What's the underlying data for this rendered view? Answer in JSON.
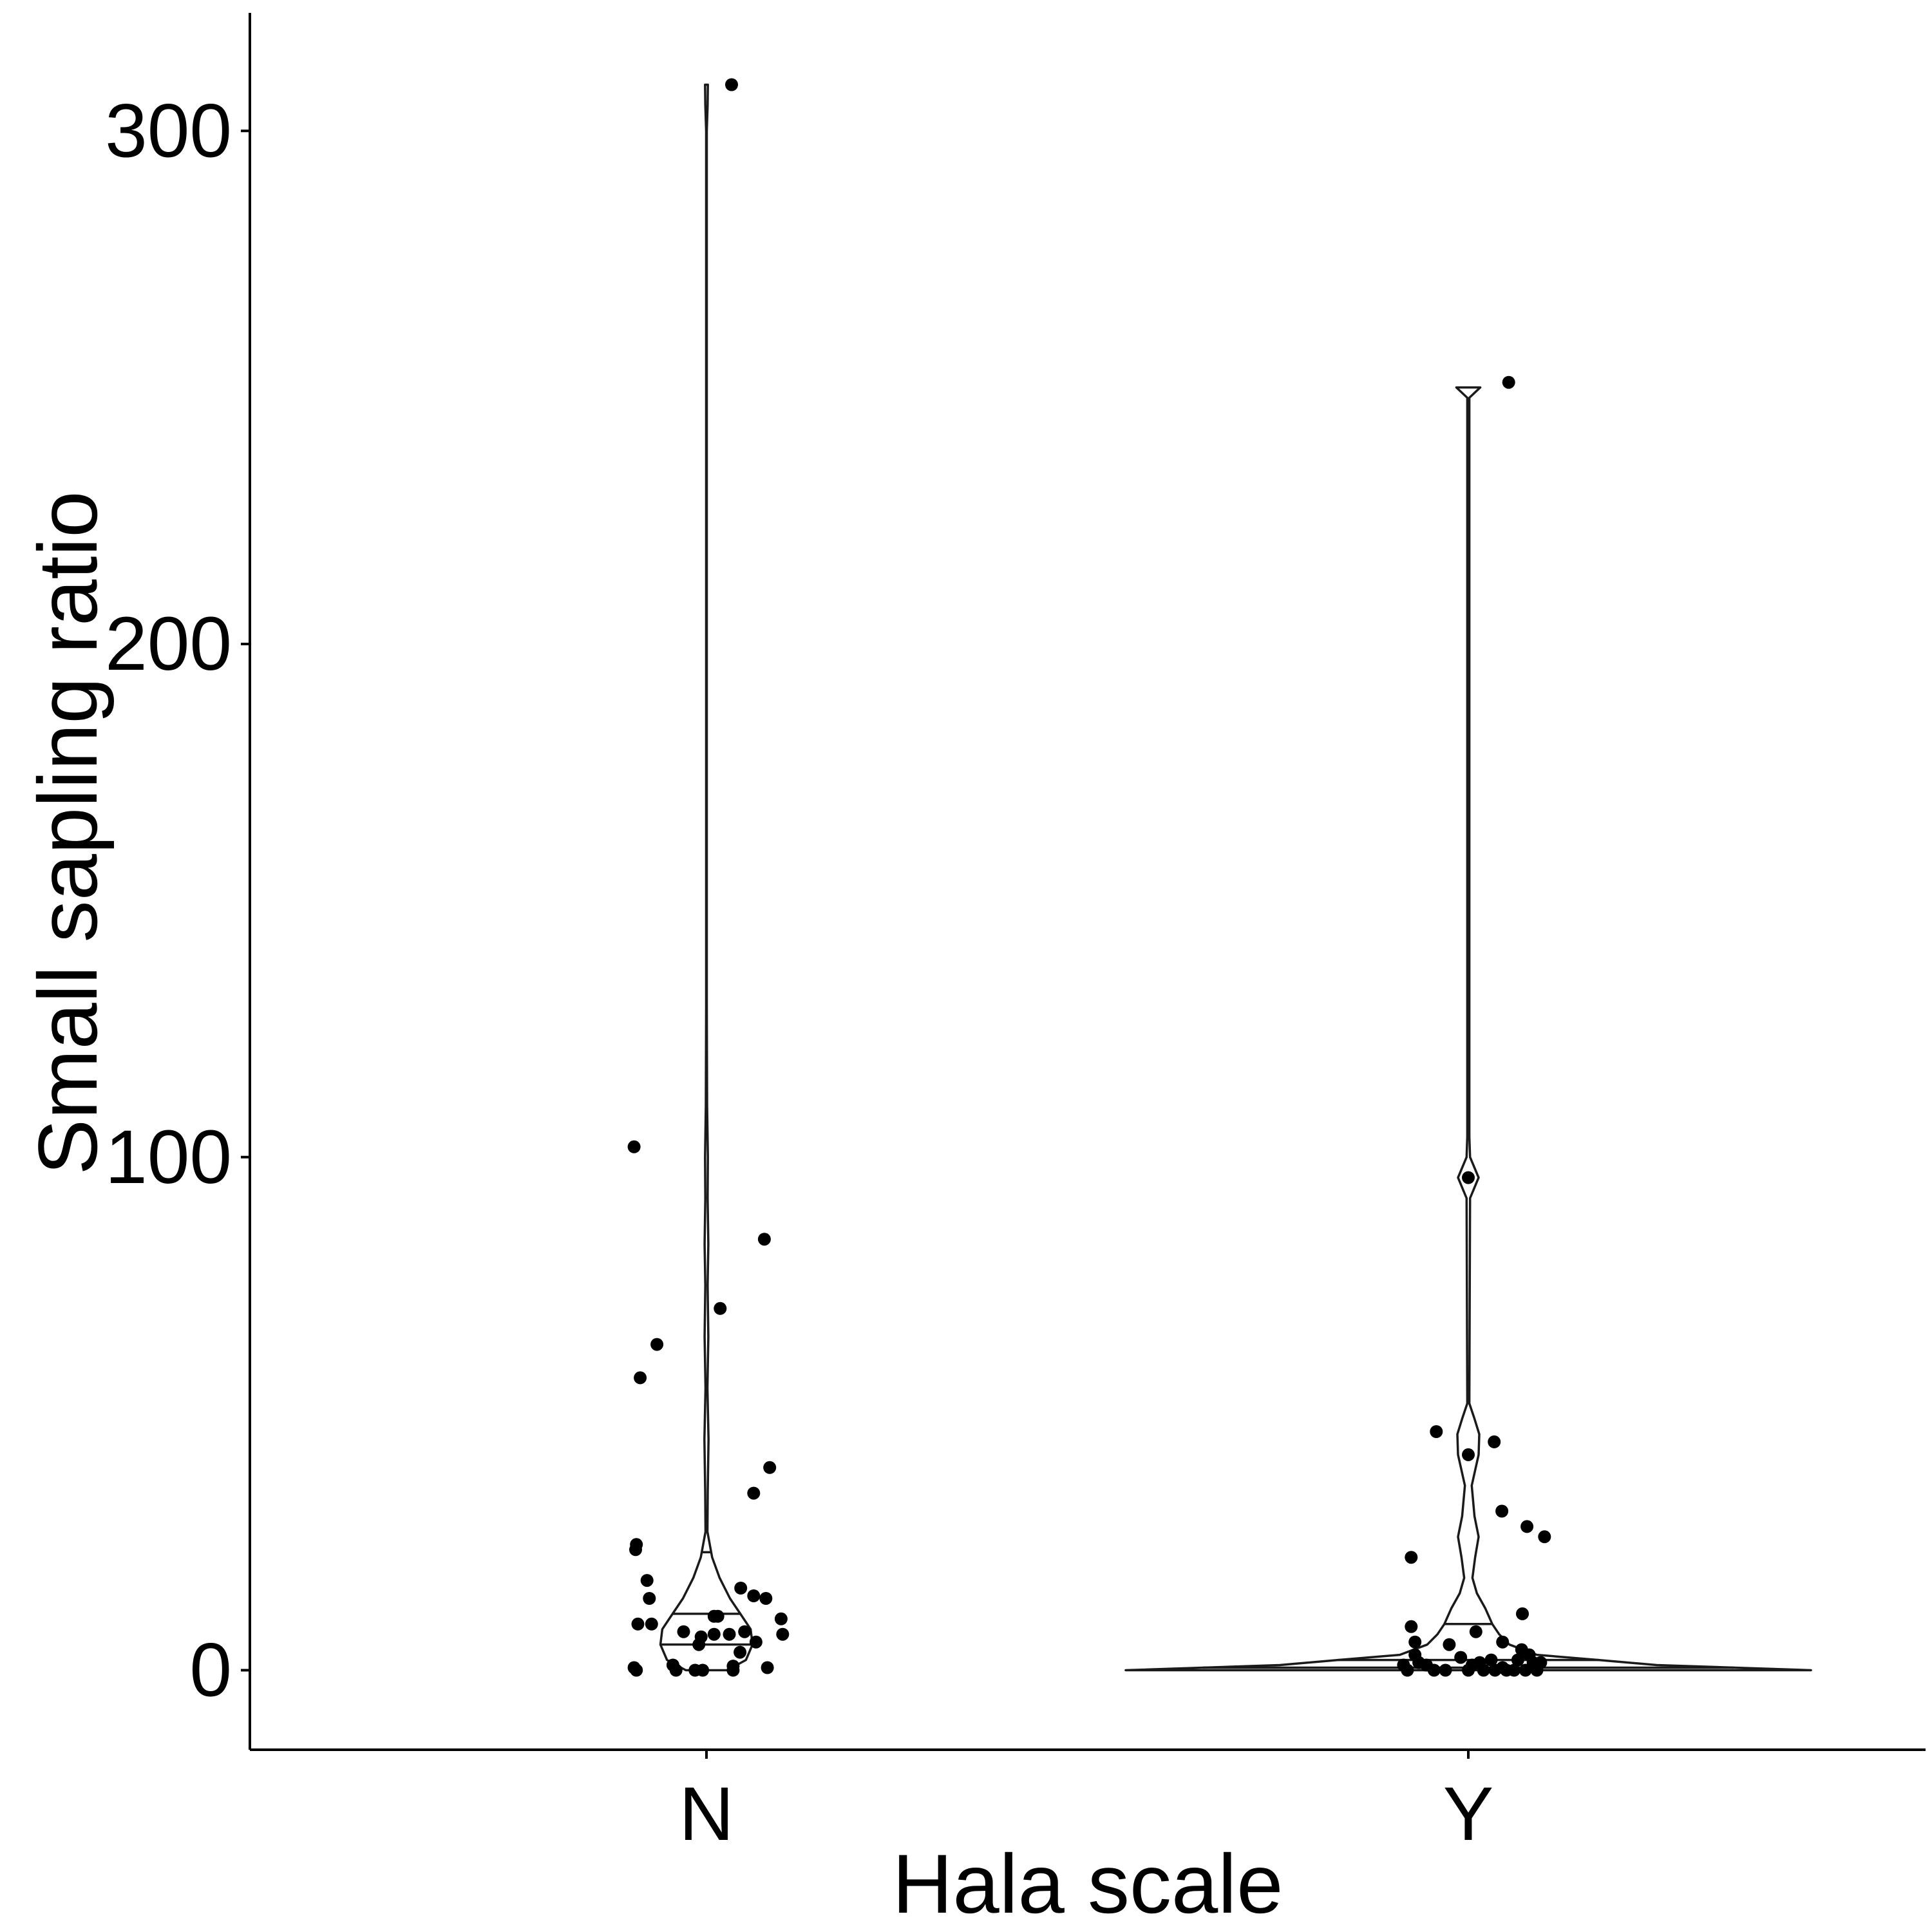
{
  "chart_data": {
    "type": "violin",
    "title": "",
    "xlabel": "Hala scale",
    "ylabel": "Small sapling ratio",
    "categories": [
      "N",
      "Y"
    ],
    "ylim": [
      -15.5,
      323
    ],
    "yticks": [
      0,
      100,
      200,
      300
    ],
    "ytick_labels": [
      "0",
      "100",
      "200",
      "300"
    ],
    "grid": false,
    "legend": "none",
    "colors": {
      "violin_stroke": "#1a1a1a",
      "point": "#000000",
      "axis": "#000000"
    },
    "violins": [
      {
        "category": "N",
        "max": 309,
        "quantiles": [
          5,
          11,
          23
        ],
        "profile": [
          [
            0,
            0.22
          ],
          [
            2,
            0.42
          ],
          [
            5,
            0.49
          ],
          [
            8,
            0.47
          ],
          [
            11,
            0.36
          ],
          [
            14,
            0.25
          ],
          [
            18,
            0.14
          ],
          [
            22,
            0.06
          ],
          [
            27,
            0.01
          ],
          [
            35,
            0.014
          ],
          [
            45,
            0.022
          ],
          [
            55,
            0.01
          ],
          [
            65,
            0.02
          ],
          [
            75,
            0.012
          ],
          [
            83,
            0.02
          ],
          [
            92,
            0.012
          ],
          [
            100,
            0.015
          ],
          [
            110,
            0.007
          ],
          [
            130,
            0.0035
          ],
          [
            200,
            0.0035
          ],
          [
            290,
            0.0035
          ],
          [
            300,
            0.0035
          ],
          [
            305,
            0.012
          ],
          [
            309,
            0.015
          ]
        ]
      },
      {
        "category": "Y",
        "max": 250,
        "quantiles": [
          0.5,
          2,
          9
        ],
        "profile": [
          [
            0,
            1.0
          ],
          [
            1,
            0.55
          ],
          [
            2,
            0.38
          ],
          [
            3,
            0.2
          ],
          [
            5,
            0.12
          ],
          [
            7,
            0.09
          ],
          [
            9,
            0.07
          ],
          [
            12,
            0.05
          ],
          [
            15,
            0.025
          ],
          [
            18,
            0.012
          ],
          [
            22,
            0.02
          ],
          [
            26,
            0.03
          ],
          [
            30,
            0.018
          ],
          [
            36,
            0.01
          ],
          [
            42,
            0.03
          ],
          [
            46,
            0.032
          ],
          [
            49,
            0.018
          ],
          [
            52,
            0.003
          ],
          [
            92,
            0.005
          ],
          [
            96,
            0.03
          ],
          [
            100,
            0.005
          ],
          [
            104,
            0.003
          ],
          [
            248,
            0.003
          ],
          [
            250,
            0.035
          ]
        ]
      }
    ],
    "points": [
      {
        "category": "N",
        "jitter": -0.095,
        "value": 102
      },
      {
        "category": "N",
        "jitter": 0.076,
        "value": 84
      },
      {
        "category": "N",
        "jitter": 0.018,
        "value": 70.5
      },
      {
        "category": "N",
        "jitter": -0.065,
        "value": 63.5
      },
      {
        "category": "N",
        "jitter": -0.087,
        "value": 57
      },
      {
        "category": "N",
        "jitter": 0.083,
        "value": 39.5
      },
      {
        "category": "N",
        "jitter": 0.062,
        "value": 34.5
      },
      {
        "category": "N",
        "jitter": -0.092,
        "value": 24.5
      },
      {
        "category": "N",
        "jitter": -0.093,
        "value": 23.5
      },
      {
        "category": "N",
        "jitter": -0.078,
        "value": 17.5
      },
      {
        "category": "N",
        "jitter": 0.045,
        "value": 16
      },
      {
        "category": "N",
        "jitter": -0.075,
        "value": 14
      },
      {
        "category": "N",
        "jitter": 0.062,
        "value": 14.5
      },
      {
        "category": "N",
        "jitter": 0.078,
        "value": 14
      },
      {
        "category": "N",
        "jitter": 0.01,
        "value": 10.5
      },
      {
        "category": "N",
        "jitter": 0.015,
        "value": 10.5
      },
      {
        "category": "N",
        "jitter": -0.09,
        "value": 9
      },
      {
        "category": "N",
        "jitter": -0.072,
        "value": 9
      },
      {
        "category": "N",
        "jitter": 0.098,
        "value": 10
      },
      {
        "category": "N",
        "jitter": -0.03,
        "value": 7.5
      },
      {
        "category": "N",
        "jitter": 0.05,
        "value": 7.5
      },
      {
        "category": "N",
        "jitter": 0.01,
        "value": 7
      },
      {
        "category": "N",
        "jitter": 0.03,
        "value": 7
      },
      {
        "category": "N",
        "jitter": 0.1,
        "value": 7
      },
      {
        "category": "N",
        "jitter": -0.007,
        "value": 6.5
      },
      {
        "category": "N",
        "jitter": 0.065,
        "value": 5.5
      },
      {
        "category": "N",
        "jitter": -0.01,
        "value": 5
      },
      {
        "category": "N",
        "jitter": 0.044,
        "value": 3.5
      },
      {
        "category": "N",
        "jitter": -0.044,
        "value": 1
      },
      {
        "category": "N",
        "jitter": -0.095,
        "value": 0.5
      },
      {
        "category": "N",
        "jitter": -0.04,
        "value": 0
      },
      {
        "category": "N",
        "jitter": -0.015,
        "value": 0
      },
      {
        "category": "N",
        "jitter": -0.005,
        "value": 0
      },
      {
        "category": "N",
        "jitter": 0.035,
        "value": 0
      },
      {
        "category": "N",
        "jitter": 0.035,
        "value": 0.8
      },
      {
        "category": "N",
        "jitter": 0.08,
        "value": 0.5
      },
      {
        "category": "N",
        "jitter": -0.092,
        "value": 0
      },
      {
        "category": "N",
        "jitter": 0.033,
        "value": 309
      },
      {
        "category": "Y",
        "jitter": 0.053,
        "value": 251
      },
      {
        "category": "Y",
        "jitter": 0.0,
        "value": 96
      },
      {
        "category": "Y",
        "jitter": -0.042,
        "value": 46.5
      },
      {
        "category": "Y",
        "jitter": 0.034,
        "value": 44.5
      },
      {
        "category": "Y",
        "jitter": 0.0,
        "value": 42
      },
      {
        "category": "Y",
        "jitter": 0.044,
        "value": 31
      },
      {
        "category": "Y",
        "jitter": 0.077,
        "value": 28
      },
      {
        "category": "Y",
        "jitter": 0.1,
        "value": 26
      },
      {
        "category": "Y",
        "jitter": -0.075,
        "value": 22
      },
      {
        "category": "Y",
        "jitter": 0.071,
        "value": 11
      },
      {
        "category": "Y",
        "jitter": -0.075,
        "value": 8.5
      },
      {
        "category": "Y",
        "jitter": 0.01,
        "value": 7.5
      },
      {
        "category": "Y",
        "jitter": 0.045,
        "value": 5.5
      },
      {
        "category": "Y",
        "jitter": -0.07,
        "value": 5.5
      },
      {
        "category": "Y",
        "jitter": -0.025,
        "value": 5
      },
      {
        "category": "Y",
        "jitter": 0.07,
        "value": 4
      },
      {
        "category": "Y",
        "jitter": -0.07,
        "value": 3
      },
      {
        "category": "Y",
        "jitter": 0.08,
        "value": 3
      },
      {
        "category": "Y",
        "jitter": -0.01,
        "value": 2.5
      },
      {
        "category": "Y",
        "jitter": 0.03,
        "value": 2
      },
      {
        "category": "Y",
        "jitter": 0.065,
        "value": 2
      },
      {
        "category": "Y",
        "jitter": 0.085,
        "value": 1.5
      },
      {
        "category": "Y",
        "jitter": 0.095,
        "value": 1.5
      },
      {
        "category": "Y",
        "jitter": -0.085,
        "value": 1
      },
      {
        "category": "Y",
        "jitter": -0.065,
        "value": 1.5
      },
      {
        "category": "Y",
        "jitter": -0.055,
        "value": 1
      },
      {
        "category": "Y",
        "jitter": 0.005,
        "value": 1
      },
      {
        "category": "Y",
        "jitter": 0.015,
        "value": 1.5
      },
      {
        "category": "Y",
        "jitter": 0.045,
        "value": 0.5
      },
      {
        "category": "Y",
        "jitter": -0.08,
        "value": 0
      },
      {
        "category": "Y",
        "jitter": -0.045,
        "value": 0
      },
      {
        "category": "Y",
        "jitter": -0.03,
        "value": 0
      },
      {
        "category": "Y",
        "jitter": 0.0,
        "value": 0
      },
      {
        "category": "Y",
        "jitter": 0.02,
        "value": 0
      },
      {
        "category": "Y",
        "jitter": 0.035,
        "value": 0
      },
      {
        "category": "Y",
        "jitter": 0.05,
        "value": 0
      },
      {
        "category": "Y",
        "jitter": 0.06,
        "value": 0
      },
      {
        "category": "Y",
        "jitter": 0.075,
        "value": 0
      },
      {
        "category": "Y",
        "jitter": 0.09,
        "value": 0
      }
    ]
  }
}
